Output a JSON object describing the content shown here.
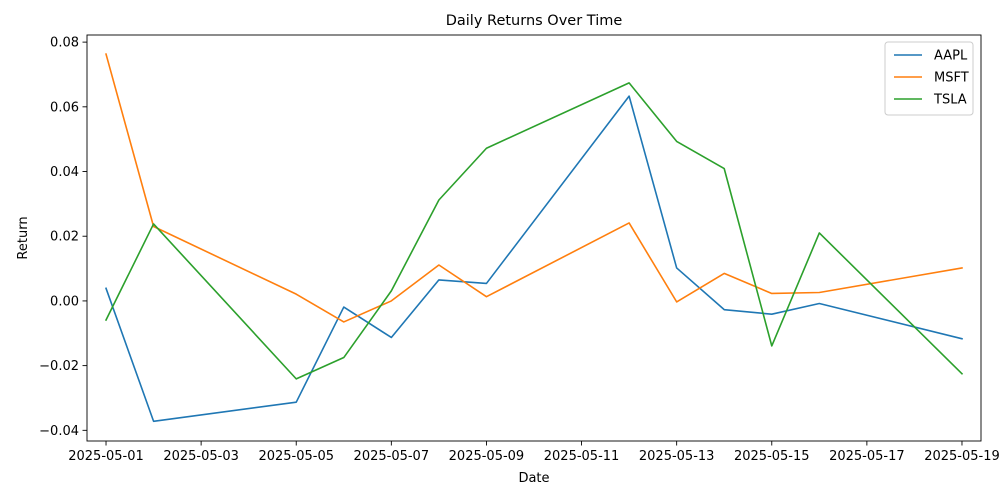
{
  "chart_data": {
    "type": "line",
    "title": "Daily Returns Over Time",
    "xlabel": "Date",
    "ylabel": "Return",
    "x": [
      "2025-05-01",
      "2025-05-02",
      "2025-05-05",
      "2025-05-06",
      "2025-05-07",
      "2025-05-08",
      "2025-05-09",
      "2025-05-12",
      "2025-05-13",
      "2025-05-14",
      "2025-05-15",
      "2025-05-16",
      "2025-05-19"
    ],
    "xlim": [
      "2025-04-30T14:24",
      "2025-05-19T09:36"
    ],
    "ylim": [
      -0.0433,
      0.0822
    ],
    "x_ticks": [
      "2025-05-01",
      "2025-05-03",
      "2025-05-05",
      "2025-05-07",
      "2025-05-09",
      "2025-05-11",
      "2025-05-13",
      "2025-05-15",
      "2025-05-17",
      "2025-05-19"
    ],
    "y_ticks": [
      -0.04,
      -0.02,
      0.0,
      0.02,
      0.04,
      0.06,
      0.08
    ],
    "y_tick_labels": [
      "−0.04",
      "−0.02",
      "0.00",
      "0.02",
      "0.04",
      "0.06",
      "0.08"
    ],
    "grid": false,
    "legend_position": "top-right",
    "series": [
      {
        "name": "AAPL",
        "color": "#1f77b4",
        "values": [
          0.0039,
          -0.0372,
          -0.0313,
          -0.0019,
          -0.0113,
          0.0065,
          0.0054,
          0.0633,
          0.0102,
          -0.0027,
          -0.0041,
          -0.0008,
          -0.0117
        ]
      },
      {
        "name": "MSFT",
        "color": "#ff7f0e",
        "values": [
          0.0763,
          0.023,
          0.0021,
          -0.0065,
          0.0,
          0.0111,
          0.0013,
          0.0241,
          -0.0003,
          0.0085,
          0.0023,
          0.0026,
          0.0102
        ]
      },
      {
        "name": "TSLA",
        "color": "#2ca02c",
        "values": [
          -0.0059,
          0.0238,
          -0.0241,
          -0.0175,
          0.0031,
          0.0312,
          0.0472,
          0.0674,
          0.0493,
          0.0409,
          -0.0139,
          0.021,
          -0.0225
        ]
      }
    ]
  }
}
